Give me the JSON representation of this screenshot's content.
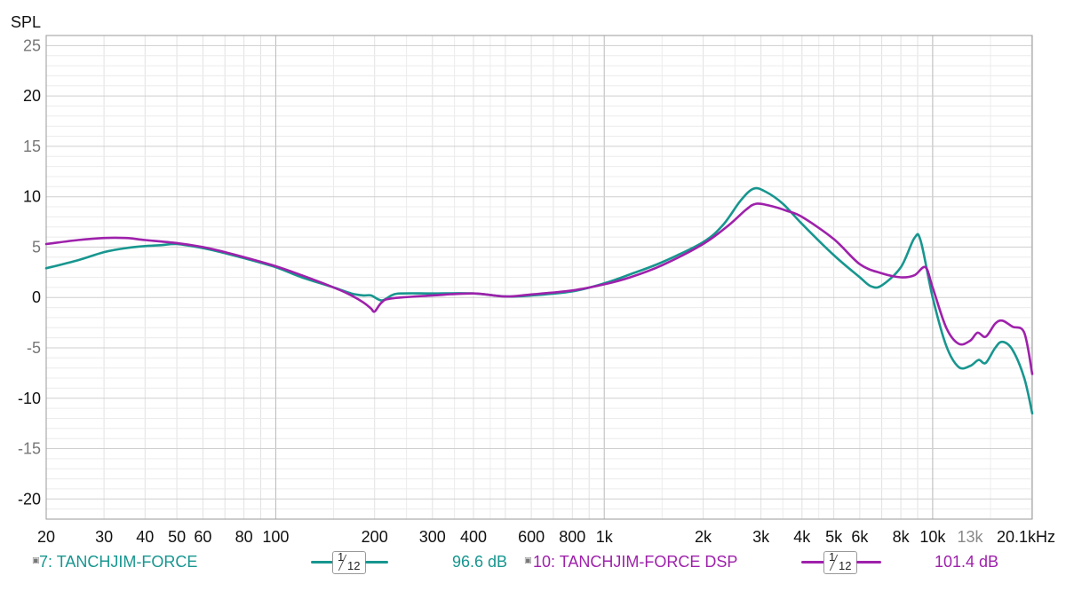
{
  "chart_data": {
    "type": "line",
    "ylabel": "SPL",
    "xscale": "log",
    "xlim": [
      20,
      20100
    ],
    "ylim": [
      -22,
      26
    ],
    "grid": true,
    "y_ticks": [
      {
        "v": 25,
        "label": "25",
        "light": true
      },
      {
        "v": 20,
        "label": "20",
        "light": false
      },
      {
        "v": 15,
        "label": "15",
        "light": true
      },
      {
        "v": 10,
        "label": "10",
        "light": false
      },
      {
        "v": 5,
        "label": "5",
        "light": true
      },
      {
        "v": 0,
        "label": "0",
        "light": false
      },
      {
        "v": -5,
        "label": "-5",
        "light": true
      },
      {
        "v": -10,
        "label": "-10",
        "light": false
      },
      {
        "v": -15,
        "label": "-15",
        "light": true
      },
      {
        "v": -20,
        "label": "-20",
        "light": false
      }
    ],
    "x_ticks": [
      {
        "v": 20,
        "label": "20"
      },
      {
        "v": 30,
        "label": "30"
      },
      {
        "v": 40,
        "label": "40"
      },
      {
        "v": 50,
        "label": "50"
      },
      {
        "v": 60,
        "label": "60"
      },
      {
        "v": 80,
        "label": "80"
      },
      {
        "v": 100,
        "label": "100"
      },
      {
        "v": 200,
        "label": "200"
      },
      {
        "v": 300,
        "label": "300"
      },
      {
        "v": 400,
        "label": "400"
      },
      {
        "v": 600,
        "label": "600"
      },
      {
        "v": 800,
        "label": "800"
      },
      {
        "v": 1000,
        "label": "1k"
      },
      {
        "v": 2000,
        "label": "2k"
      },
      {
        "v": 3000,
        "label": "3k"
      },
      {
        "v": 4000,
        "label": "4k"
      },
      {
        "v": 5000,
        "label": "5k"
      },
      {
        "v": 6000,
        "label": "6k"
      },
      {
        "v": 8000,
        "label": "8k"
      },
      {
        "v": 10000,
        "label": "10k"
      },
      {
        "v": 13000,
        "label": "13k",
        "light": true
      },
      {
        "v": 20100,
        "label": "20.1kHz"
      }
    ],
    "series": [
      {
        "name": "7: TANCHJIM-FORCE",
        "color": "#17968f",
        "level": "96.6 dB",
        "smoothing": {
          "num": "1",
          "den": "12"
        },
        "points": [
          [
            20,
            2.9
          ],
          [
            25,
            3.7
          ],
          [
            30,
            4.5
          ],
          [
            35,
            4.9
          ],
          [
            40,
            5.1
          ],
          [
            45,
            5.2
          ],
          [
            50,
            5.3
          ],
          [
            60,
            4.9
          ],
          [
            70,
            4.4
          ],
          [
            80,
            3.9
          ],
          [
            100,
            3.0
          ],
          [
            120,
            2.0
          ],
          [
            150,
            1.0
          ],
          [
            170,
            0.4
          ],
          [
            185,
            0.2
          ],
          [
            195,
            0.2
          ],
          [
            210,
            -0.3
          ],
          [
            225,
            0.2
          ],
          [
            240,
            0.4
          ],
          [
            300,
            0.4
          ],
          [
            400,
            0.4
          ],
          [
            500,
            0.1
          ],
          [
            600,
            0.2
          ],
          [
            800,
            0.6
          ],
          [
            1000,
            1.4
          ],
          [
            1200,
            2.3
          ],
          [
            1500,
            3.5
          ],
          [
            2000,
            5.5
          ],
          [
            2300,
            7.2
          ],
          [
            2600,
            9.6
          ],
          [
            2850,
            10.8
          ],
          [
            3100,
            10.5
          ],
          [
            3500,
            9.3
          ],
          [
            4000,
            7.3
          ],
          [
            5000,
            4.2
          ],
          [
            6000,
            2.0
          ],
          [
            6500,
            1.1
          ],
          [
            7000,
            1.2
          ],
          [
            8000,
            3.0
          ],
          [
            8800,
            5.9
          ],
          [
            9200,
            5.6
          ],
          [
            10000,
            0.0
          ],
          [
            11000,
            -4.8
          ],
          [
            12000,
            -6.9
          ],
          [
            13000,
            -6.8
          ],
          [
            13800,
            -6.2
          ],
          [
            14500,
            -6.5
          ],
          [
            15500,
            -5.0
          ],
          [
            16300,
            -4.4
          ],
          [
            17500,
            -5.2
          ],
          [
            19000,
            -8.0
          ],
          [
            20100,
            -11.5
          ]
        ]
      },
      {
        "name": "10: TANCHJIM-FORCE DSP",
        "color": "#9e21ab",
        "level": "101.4 dB",
        "smoothing": {
          "num": "1",
          "den": "12"
        },
        "points": [
          [
            20,
            5.3
          ],
          [
            25,
            5.7
          ],
          [
            30,
            5.9
          ],
          [
            35,
            5.9
          ],
          [
            40,
            5.7
          ],
          [
            50,
            5.4
          ],
          [
            60,
            5.0
          ],
          [
            70,
            4.5
          ],
          [
            80,
            4.0
          ],
          [
            100,
            3.1
          ],
          [
            120,
            2.2
          ],
          [
            150,
            1.0
          ],
          [
            170,
            0.2
          ],
          [
            185,
            -0.5
          ],
          [
            195,
            -1.1
          ],
          [
            200,
            -1.4
          ],
          [
            210,
            -0.5
          ],
          [
            225,
            -0.1
          ],
          [
            300,
            0.2
          ],
          [
            400,
            0.4
          ],
          [
            500,
            0.1
          ],
          [
            600,
            0.3
          ],
          [
            800,
            0.7
          ],
          [
            1000,
            1.3
          ],
          [
            1200,
            2.0
          ],
          [
            1500,
            3.2
          ],
          [
            2000,
            5.3
          ],
          [
            2400,
            7.2
          ],
          [
            2700,
            8.7
          ],
          [
            2900,
            9.3
          ],
          [
            3200,
            9.1
          ],
          [
            3600,
            8.6
          ],
          [
            4000,
            8.0
          ],
          [
            5000,
            5.8
          ],
          [
            6000,
            3.3
          ],
          [
            7000,
            2.4
          ],
          [
            8000,
            2.0
          ],
          [
            8800,
            2.2
          ],
          [
            9500,
            3.0
          ],
          [
            10000,
            1.0
          ],
          [
            11000,
            -3.0
          ],
          [
            12000,
            -4.6
          ],
          [
            13000,
            -4.3
          ],
          [
            13700,
            -3.5
          ],
          [
            14500,
            -3.9
          ],
          [
            15500,
            -2.6
          ],
          [
            16300,
            -2.3
          ],
          [
            17500,
            -2.9
          ],
          [
            19000,
            -3.5
          ],
          [
            20100,
            -7.6
          ]
        ]
      }
    ]
  }
}
